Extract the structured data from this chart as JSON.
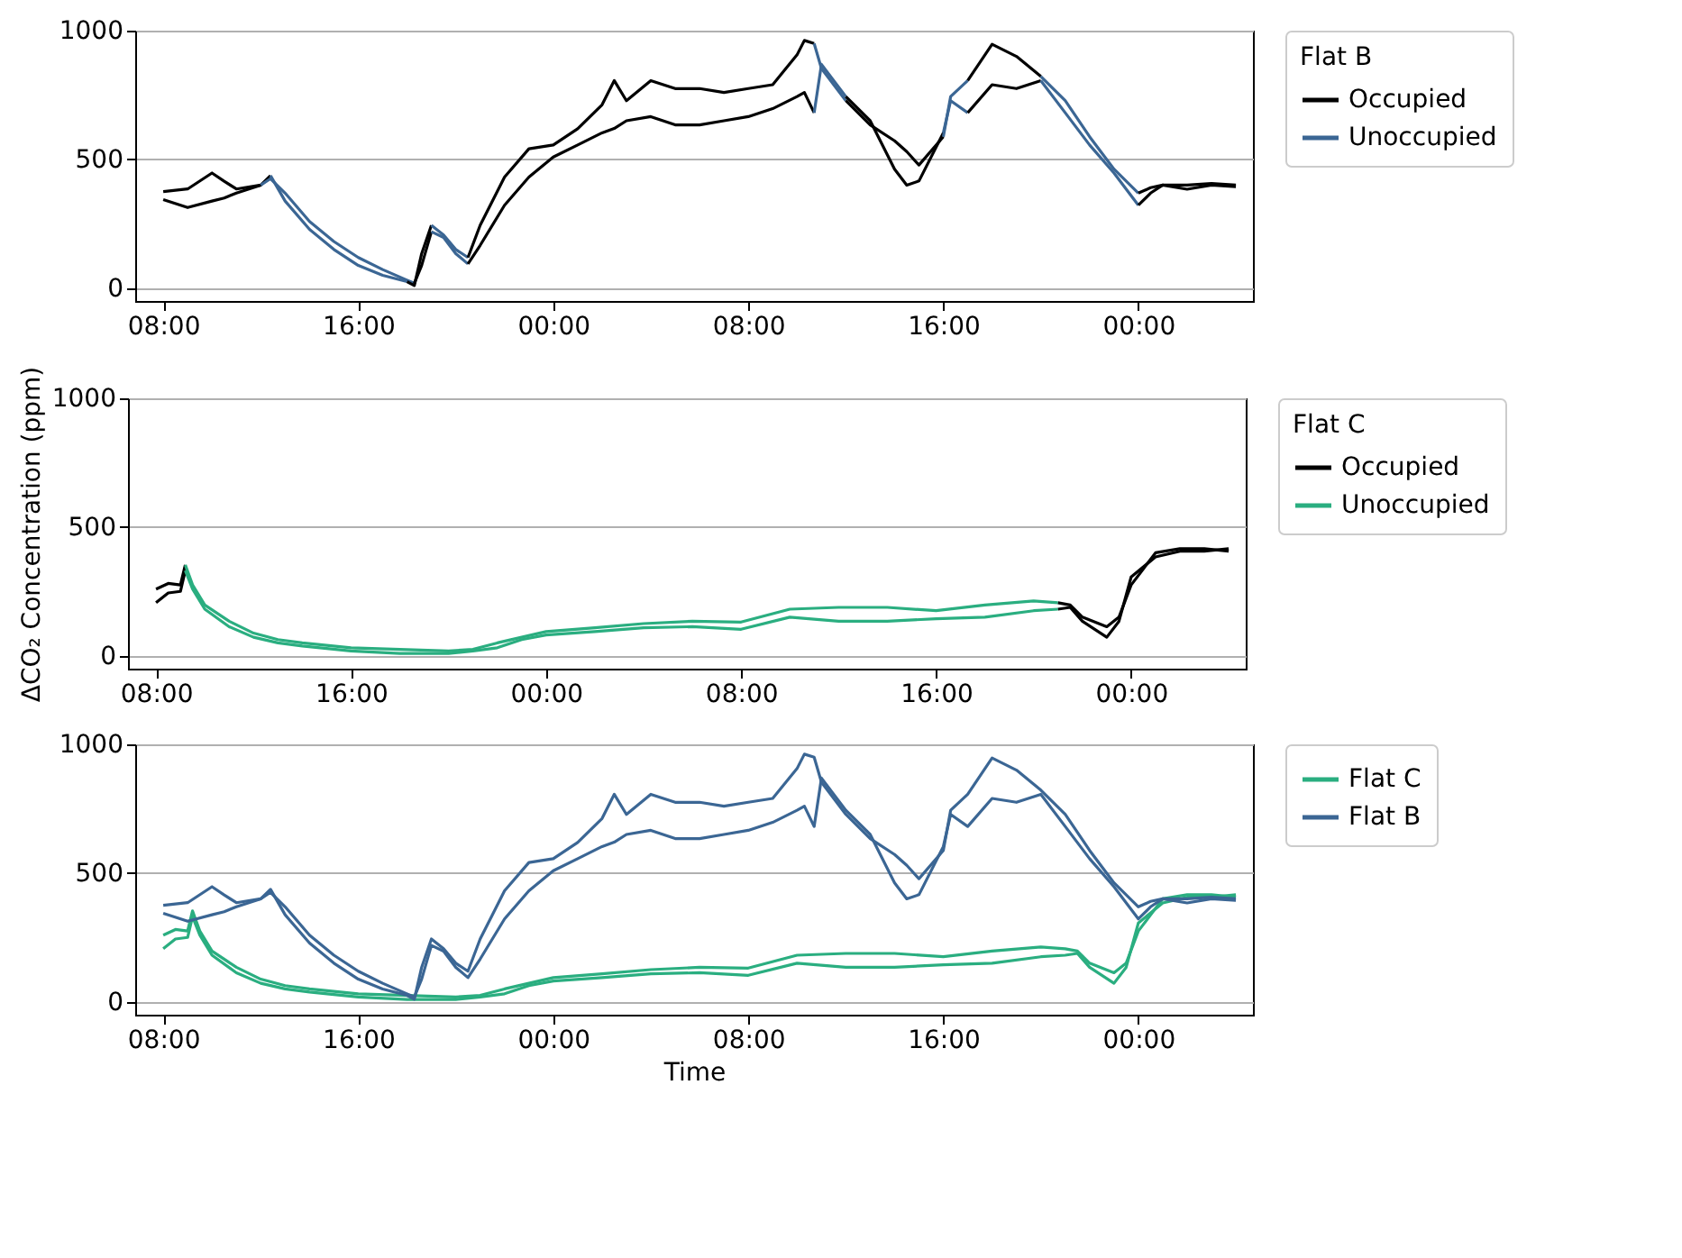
{
  "chart_data": [
    {
      "type": "line",
      "legend_title": "Flat B",
      "legend": "right",
      "grid": "y",
      "xlim": [
        "--01-01T06:51",
        "--01-03T04:42"
      ],
      "xticks": [
        {
          "value": "--01-01T08:00",
          "label": "08:00"
        },
        {
          "value": "--01-01T16:00",
          "label": "16:00"
        },
        {
          "value": "--01-02T00:00",
          "label": "00:00"
        },
        {
          "value": "--01-02T08:00",
          "label": "08:00"
        },
        {
          "value": "--01-02T16:00",
          "label": "16:00"
        },
        {
          "value": "--01-03T00:00",
          "label": "00:00"
        }
      ],
      "ylim": [
        -50,
        1000
      ],
      "yticks": [
        0,
        500,
        1000
      ],
      "series": [
        {
          "name": "Occupied",
          "color": "#000000",
          "x": [
            "--01-01T08:00",
            "--01-01T09:00",
            "--01-01T10:00",
            "--01-01T10:30",
            "--01-01T11:00",
            "--01-01T12:00",
            "--01-01T12:24"
          ],
          "values": [
            375,
            385,
            447,
            415,
            385,
            400,
            437
          ]
        },
        {
          "color": "#000000",
          "x": [
            "--01-01T08:00",
            "--01-01T09:00",
            "--01-01T10:00",
            "--01-01T10:30",
            "--01-01T11:00",
            "--01-01T12:00"
          ],
          "values": [
            344,
            313,
            338,
            350,
            369,
            400
          ]
        },
        {
          "name": "Unoccupied",
          "color": "#3b6694",
          "x": [
            "--01-01T12:24",
            "--01-01T13:00",
            "--01-01T14:00",
            "--01-01T15:00",
            "--01-01T16:00",
            "--01-01T17:00",
            "--01-01T18:00"
          ],
          "values": [
            437,
            338,
            228,
            150,
            88,
            50,
            25
          ]
        },
        {
          "color": "#3b6694",
          "x": [
            "--01-01T12:00",
            "--01-01T12:24",
            "--01-01T13:00",
            "--01-01T14:00",
            "--01-01T15:00",
            "--01-01T16:00",
            "--01-01T17:00",
            "--01-01T18:00",
            "--01-01T18:18"
          ],
          "values": [
            400,
            425,
            369,
            259,
            181,
            119,
            72,
            31,
            19
          ]
        },
        {
          "color": "#000000",
          "x": [
            "--01-01T18:00",
            "--01-01T18:18",
            "--01-01T18:36",
            "--01-01T19:00"
          ],
          "values": [
            25,
            10,
            134,
            244
          ]
        },
        {
          "color": "#000000",
          "x": [
            "--01-01T18:18",
            "--01-01T18:36",
            "--01-01T19:00"
          ],
          "values": [
            19,
            88,
            219
          ]
        },
        {
          "color": "#3b6694",
          "x": [
            "--01-01T19:00",
            "--01-01T19:30",
            "--01-01T20:00",
            "--01-01T20:30"
          ],
          "values": [
            244,
            206,
            150,
            119
          ]
        },
        {
          "color": "#3b6694",
          "x": [
            "--01-01T19:00",
            "--01-01T19:30",
            "--01-01T20:00",
            "--01-01T20:30"
          ],
          "values": [
            219,
            197,
            134,
            94
          ]
        },
        {
          "color": "#000000",
          "x": [
            "--01-01T20:30",
            "--01-01T21:00",
            "--01-01T22:00",
            "--01-01T23:00",
            "--01-02T00:00",
            "--01-02T01:00",
            "--01-02T02:00",
            "--01-02T02:30",
            "--01-02T03:00",
            "--01-02T04:00",
            "--01-02T05:00",
            "--01-02T06:00",
            "--01-02T07:00",
            "--01-02T08:00",
            "--01-02T09:00",
            "--01-02T10:00",
            "--01-02T10:18",
            "--01-02T10:42"
          ],
          "values": [
            119,
            244,
            431,
            541,
            556,
            619,
            712,
            806,
            728,
            806,
            775,
            775,
            760,
            775,
            790,
            906,
            962,
            950
          ]
        },
        {
          "color": "#000000",
          "x": [
            "--01-01T20:30",
            "--01-01T21:00",
            "--01-01T22:00",
            "--01-01T23:00",
            "--01-02T00:00",
            "--01-02T01:00",
            "--01-02T02:00",
            "--01-02T02:30",
            "--01-02T03:00",
            "--01-02T04:00",
            "--01-02T05:00",
            "--01-02T06:00",
            "--01-02T07:00",
            "--01-02T08:00",
            "--01-02T09:00",
            "--01-02T10:00",
            "--01-02T10:18",
            "--01-02T10:42"
          ],
          "values": [
            94,
            166,
            322,
            431,
            509,
            556,
            603,
            620,
            650,
            666,
            634,
            634,
            650,
            666,
            697,
            744,
            760,
            681
          ]
        },
        {
          "color": "#3b6694",
          "x": [
            "--01-02T10:42",
            "--01-02T11:00",
            "--01-02T12:00"
          ],
          "values": [
            950,
            853,
            728
          ]
        },
        {
          "color": "#3b6694",
          "x": [
            "--01-02T10:42",
            "--01-02T11:00",
            "--01-02T12:00"
          ],
          "values": [
            681,
            869,
            744
          ]
        },
        {
          "color": "#000000",
          "x": [
            "--01-02T12:00",
            "--01-02T13:00",
            "--01-02T14:00",
            "--01-02T14:30",
            "--01-02T15:00",
            "--01-02T16:00"
          ],
          "values": [
            728,
            634,
            572,
            530,
            478,
            588
          ]
        },
        {
          "color": "#000000",
          "x": [
            "--01-02T12:00",
            "--01-02T13:00",
            "--01-02T14:00",
            "--01-02T14:30",
            "--01-02T15:00",
            "--01-02T16:00"
          ],
          "values": [
            744,
            650,
            462,
            400,
            416,
            603
          ]
        },
        {
          "color": "#3b6694",
          "x": [
            "--01-02T16:00",
            "--01-02T16:18",
            "--01-02T17:00"
          ],
          "values": [
            588,
            744,
            806
          ]
        },
        {
          "color": "#3b6694",
          "x": [
            "--01-02T16:00",
            "--01-02T16:18",
            "--01-02T17:00"
          ],
          "values": [
            603,
            728,
            681
          ]
        },
        {
          "color": "#000000",
          "x": [
            "--01-02T17:00",
            "--01-02T18:00",
            "--01-02T19:00",
            "--01-02T20:00"
          ],
          "values": [
            806,
            947,
            900,
            822
          ]
        },
        {
          "color": "#000000",
          "x": [
            "--01-02T17:00",
            "--01-02T18:00",
            "--01-02T19:00",
            "--01-02T20:00"
          ],
          "values": [
            681,
            790,
            775,
            806
          ]
        },
        {
          "color": "#3b6694",
          "x": [
            "--01-02T20:00",
            "--01-02T21:00",
            "--01-02T22:00",
            "--01-02T23:00",
            "--01-03T00:00"
          ],
          "values": [
            822,
            728,
            588,
            462,
            369
          ]
        },
        {
          "color": "#3b6694",
          "x": [
            "--01-02T20:00",
            "--01-02T21:00",
            "--01-02T22:00",
            "--01-02T23:00",
            "--01-03T00:00"
          ],
          "values": [
            806,
            681,
            556,
            447,
            322
          ]
        },
        {
          "color": "#000000",
          "x": [
            "--01-03T00:00",
            "--01-03T00:30",
            "--01-03T01:00",
            "--01-03T02:00",
            "--01-03T03:00",
            "--01-03T04:00"
          ],
          "values": [
            369,
            390,
            400,
            400,
            406,
            400
          ]
        },
        {
          "color": "#000000",
          "x": [
            "--01-03T00:00",
            "--01-03T00:30",
            "--01-03T01:00",
            "--01-03T02:00",
            "--01-03T03:00",
            "--01-03T04:00"
          ],
          "values": [
            322,
            369,
            400,
            384,
            400,
            394
          ]
        }
      ]
    },
    {
      "type": "line",
      "legend_title": "Flat C",
      "legend": "right",
      "grid": "y",
      "ylabel": "ΔCO₂ Concentration (ppm)",
      "xlim": [
        "--01-01T06:51",
        "--01-03T04:42"
      ],
      "xticks": [
        {
          "value": "--01-01T08:00",
          "label": "08:00"
        },
        {
          "value": "--01-01T16:00",
          "label": "16:00"
        },
        {
          "value": "--01-02T00:00",
          "label": "00:00"
        },
        {
          "value": "--01-02T08:00",
          "label": "08:00"
        },
        {
          "value": "--01-02T16:00",
          "label": "16:00"
        },
        {
          "value": "--01-03T00:00",
          "label": "00:00"
        }
      ],
      "ylim": [
        -50,
        1000
      ],
      "yticks": [
        0,
        500,
        1000
      ],
      "series": [
        {
          "name": "Occupied",
          "color": "#000000",
          "x": [
            "--01-01T08:00",
            "--01-01T08:30",
            "--01-01T09:00",
            "--01-01T09:12"
          ],
          "values": [
            259,
            281,
            275,
            353
          ]
        },
        {
          "color": "#000000",
          "x": [
            "--01-01T08:00",
            "--01-01T08:30",
            "--01-01T09:00",
            "--01-01T09:12"
          ],
          "values": [
            206,
            244,
            250,
            331
          ]
        },
        {
          "name": "Unoccupied",
          "color": "#2aae80",
          "x": [
            "--01-01T09:12",
            "--01-01T09:30",
            "--01-01T10:00",
            "--01-01T11:00",
            "--01-01T12:00",
            "--01-01T13:00",
            "--01-01T14:00",
            "--01-01T16:00",
            "--01-01T18:00",
            "--01-01T20:00",
            "--01-01T21:00",
            "--01-01T22:00",
            "--01-01T23:00",
            "--01-02T00:00",
            "--01-02T02:00",
            "--01-02T04:00",
            "--01-02T06:00",
            "--01-02T08:00",
            "--01-02T10:00",
            "--01-02T12:00",
            "--01-02T14:00",
            "--01-02T16:00",
            "--01-02T18:00",
            "--01-02T20:00",
            "--01-02T21:00"
          ],
          "values": [
            353,
            275,
            197,
            134,
            88,
            63,
            50,
            31,
            25,
            19,
            25,
            50,
            72,
            94,
            109,
            125,
            134,
            131,
            181,
            188,
            188,
            175,
            197,
            213,
            206
          ]
        },
        {
          "color": "#2aae80",
          "x": [
            "--01-01T09:12",
            "--01-01T09:30",
            "--01-01T10:00",
            "--01-01T11:00",
            "--01-01T12:00",
            "--01-01T13:00",
            "--01-01T14:00",
            "--01-01T16:00",
            "--01-01T18:00",
            "--01-01T20:00",
            "--01-01T21:00",
            "--01-01T22:00",
            "--01-01T23:00",
            "--01-02T00:00",
            "--01-02T02:00",
            "--01-02T04:00",
            "--01-02T06:00",
            "--01-02T08:00",
            "--01-02T10:00",
            "--01-02T12:00",
            "--01-02T14:00",
            "--01-02T16:00",
            "--01-02T18:00",
            "--01-02T20:00",
            "--01-02T21:00"
          ],
          "values": [
            331,
            259,
            181,
            113,
            72,
            50,
            38,
            19,
            9,
            9,
            19,
            31,
            63,
            81,
            94,
            109,
            113,
            103,
            150,
            134,
            134,
            144,
            150,
            175,
            181
          ]
        },
        {
          "color": "#000000",
          "x": [
            "--01-02T21:00",
            "--01-02T21:30",
            "--01-02T22:00",
            "--01-02T23:00",
            "--01-02T23:30",
            "--01-03T00:00",
            "--01-03T01:00",
            "--01-03T02:00",
            "--01-03T03:00",
            "--01-03T04:00"
          ],
          "values": [
            206,
            197,
            150,
            113,
            150,
            275,
            400,
            416,
            416,
            406
          ]
        },
        {
          "color": "#000000",
          "x": [
            "--01-02T21:00",
            "--01-02T21:30",
            "--01-02T22:00",
            "--01-02T23:00",
            "--01-02T23:30",
            "--01-03T00:00",
            "--01-03T01:00",
            "--01-03T02:00",
            "--01-03T03:00",
            "--01-03T04:00"
          ],
          "values": [
            181,
            188,
            134,
            72,
            134,
            306,
            384,
            406,
            406,
            416
          ]
        }
      ]
    },
    {
      "type": "line",
      "legend": "right",
      "grid": "y",
      "xlabel": "Time",
      "xlim": [
        "--01-01T06:51",
        "--01-03T04:42"
      ],
      "xticks": [
        {
          "value": "--01-01T08:00",
          "label": "08:00"
        },
        {
          "value": "--01-01T16:00",
          "label": "16:00"
        },
        {
          "value": "--01-02T00:00",
          "label": "00:00"
        },
        {
          "value": "--01-02T08:00",
          "label": "08:00"
        },
        {
          "value": "--01-02T16:00",
          "label": "16:00"
        },
        {
          "value": "--01-03T00:00",
          "label": "00:00"
        }
      ],
      "ylim": [
        -50,
        1000
      ],
      "yticks": [
        0,
        500,
        1000
      ],
      "series": [
        {
          "name": "Flat C",
          "color": "#2aae80",
          "x": [
            "--01-01T08:00",
            "--01-01T08:30",
            "--01-01T09:00",
            "--01-01T09:12",
            "--01-01T09:30",
            "--01-01T10:00",
            "--01-01T11:00",
            "--01-01T12:00",
            "--01-01T13:00",
            "--01-01T14:00",
            "--01-01T16:00",
            "--01-01T18:00",
            "--01-01T20:00",
            "--01-01T21:00",
            "--01-01T22:00",
            "--01-01T23:00",
            "--01-02T00:00",
            "--01-02T02:00",
            "--01-02T04:00",
            "--01-02T06:00",
            "--01-02T08:00",
            "--01-02T10:00",
            "--01-02T12:00",
            "--01-02T14:00",
            "--01-02T16:00",
            "--01-02T18:00",
            "--01-02T20:00",
            "--01-02T21:00",
            "--01-02T21:30",
            "--01-02T22:00",
            "--01-02T23:00",
            "--01-02T23:30",
            "--01-03T00:00",
            "--01-03T01:00",
            "--01-03T02:00",
            "--01-03T03:00",
            "--01-03T04:00"
          ],
          "values": [
            259,
            281,
            275,
            353,
            275,
            197,
            134,
            88,
            63,
            50,
            31,
            25,
            19,
            25,
            50,
            72,
            94,
            109,
            125,
            134,
            131,
            181,
            188,
            188,
            175,
            197,
            213,
            206,
            197,
            150,
            113,
            150,
            275,
            400,
            416,
            416,
            406
          ]
        },
        {
          "color": "#2aae80",
          "x": [
            "--01-01T08:00",
            "--01-01T08:30",
            "--01-01T09:00",
            "--01-01T09:12",
            "--01-01T09:30",
            "--01-01T10:00",
            "--01-01T11:00",
            "--01-01T12:00",
            "--01-01T13:00",
            "--01-01T14:00",
            "--01-01T16:00",
            "--01-01T18:00",
            "--01-01T20:00",
            "--01-01T21:00",
            "--01-01T22:00",
            "--01-01T23:00",
            "--01-02T00:00",
            "--01-02T02:00",
            "--01-02T04:00",
            "--01-02T06:00",
            "--01-02T08:00",
            "--01-02T10:00",
            "--01-02T12:00",
            "--01-02T14:00",
            "--01-02T16:00",
            "--01-02T18:00",
            "--01-02T20:00",
            "--01-02T21:00",
            "--01-02T21:30",
            "--01-02T22:00",
            "--01-02T23:00",
            "--01-02T23:30",
            "--01-03T00:00",
            "--01-03T01:00",
            "--01-03T02:00",
            "--01-03T03:00",
            "--01-03T04:00"
          ],
          "values": [
            206,
            244,
            250,
            331,
            259,
            181,
            113,
            72,
            50,
            38,
            19,
            9,
            9,
            19,
            31,
            63,
            81,
            94,
            109,
            113,
            103,
            150,
            134,
            134,
            144,
            150,
            175,
            181,
            188,
            134,
            72,
            134,
            306,
            384,
            406,
            406,
            416
          ]
        },
        {
          "name": "Flat B",
          "color": "#3b6694",
          "x": [
            "--01-01T08:00",
            "--01-01T09:00",
            "--01-01T10:00",
            "--01-01T10:30",
            "--01-01T11:00",
            "--01-01T12:00",
            "--01-01T12:24",
            "--01-01T13:00",
            "--01-01T14:00",
            "--01-01T15:00",
            "--01-01T16:00",
            "--01-01T17:00",
            "--01-01T18:00",
            "--01-01T18:18",
            "--01-01T18:36",
            "--01-01T19:00",
            "--01-01T19:30",
            "--01-01T20:00",
            "--01-01T20:30",
            "--01-01T21:00",
            "--01-01T22:00",
            "--01-01T23:00",
            "--01-02T00:00",
            "--01-02T01:00",
            "--01-02T02:00",
            "--01-02T02:30",
            "--01-02T03:00",
            "--01-02T04:00",
            "--01-02T05:00",
            "--01-02T06:00",
            "--01-02T07:00",
            "--01-02T08:00",
            "--01-02T09:00",
            "--01-02T10:00",
            "--01-02T10:18",
            "--01-02T10:42",
            "--01-02T11:00",
            "--01-02T12:00",
            "--01-02T13:00",
            "--01-02T14:00",
            "--01-02T14:30",
            "--01-02T15:00",
            "--01-02T16:00",
            "--01-02T16:18",
            "--01-02T17:00",
            "--01-02T18:00",
            "--01-02T19:00",
            "--01-02T20:00",
            "--01-02T21:00",
            "--01-02T22:00",
            "--01-02T23:00",
            "--01-03T00:00",
            "--01-03T00:30",
            "--01-03T01:00",
            "--01-03T02:00",
            "--01-03T03:00",
            "--01-03T04:00"
          ],
          "values": [
            375,
            385,
            447,
            415,
            385,
            400,
            437,
            338,
            228,
            150,
            88,
            50,
            25,
            10,
            134,
            244,
            206,
            150,
            119,
            244,
            431,
            541,
            556,
            619,
            712,
            806,
            728,
            806,
            775,
            775,
            760,
            775,
            790,
            906,
            962,
            950,
            853,
            728,
            634,
            572,
            530,
            478,
            588,
            744,
            806,
            947,
            900,
            822,
            728,
            588,
            462,
            369,
            390,
            400,
            400,
            406,
            400
          ]
        },
        {
          "color": "#3b6694",
          "x": [
            "--01-01T08:00",
            "--01-01T09:00",
            "--01-01T10:00",
            "--01-01T10:30",
            "--01-01T11:00",
            "--01-01T12:00",
            "--01-01T12:24",
            "--01-01T13:00",
            "--01-01T14:00",
            "--01-01T15:00",
            "--01-01T16:00",
            "--01-01T17:00",
            "--01-01T18:00",
            "--01-01T18:18",
            "--01-01T18:36",
            "--01-01T19:00",
            "--01-01T19:30",
            "--01-01T20:00",
            "--01-01T20:30",
            "--01-01T21:00",
            "--01-01T22:00",
            "--01-01T23:00",
            "--01-02T00:00",
            "--01-02T01:00",
            "--01-02T02:00",
            "--01-02T02:30",
            "--01-02T03:00",
            "--01-02T04:00",
            "--01-02T05:00",
            "--01-02T06:00",
            "--01-02T07:00",
            "--01-02T08:00",
            "--01-02T09:00",
            "--01-02T10:00",
            "--01-02T10:18",
            "--01-02T10:42",
            "--01-02T11:00",
            "--01-02T12:00",
            "--01-02T13:00",
            "--01-02T14:00",
            "--01-02T14:30",
            "--01-02T15:00",
            "--01-02T16:00",
            "--01-02T16:18",
            "--01-02T17:00",
            "--01-02T18:00",
            "--01-02T19:00",
            "--01-02T20:00",
            "--01-02T21:00",
            "--01-02T22:00",
            "--01-02T23:00",
            "--01-03T00:00",
            "--01-03T00:30",
            "--01-03T01:00",
            "--01-03T02:00",
            "--01-03T03:00",
            "--01-03T04:00"
          ],
          "values": [
            344,
            313,
            338,
            350,
            369,
            400,
            425,
            369,
            259,
            181,
            119,
            72,
            31,
            19,
            88,
            219,
            197,
            134,
            94,
            166,
            322,
            431,
            509,
            556,
            603,
            620,
            650,
            666,
            634,
            634,
            650,
            666,
            697,
            744,
            760,
            681,
            869,
            744,
            650,
            462,
            400,
            416,
            603,
            728,
            681,
            790,
            775,
            806,
            681,
            556,
            447,
            322,
            369,
            400,
            384,
            400,
            394
          ]
        }
      ]
    }
  ]
}
